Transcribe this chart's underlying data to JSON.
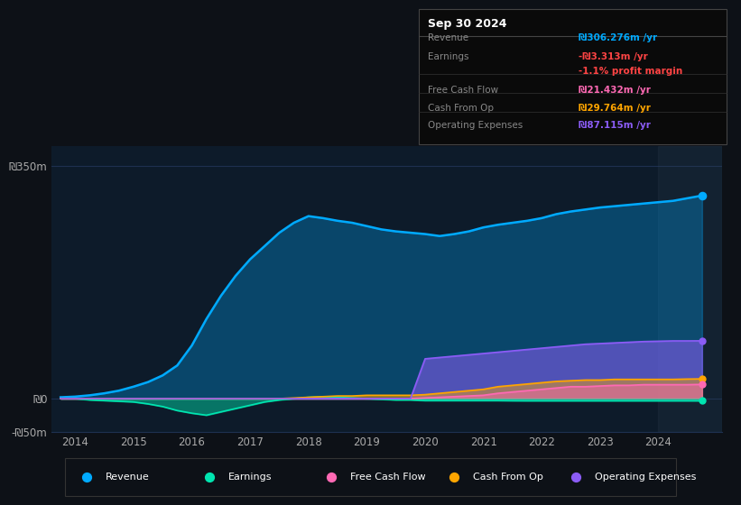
{
  "bg_color": "#0d1117",
  "plot_bg_color": "#0d1b2a",
  "grid_color": "#1e3050",
  "title_box_date": "Sep 30 2024",
  "years": [
    2013.75,
    2014.0,
    2014.25,
    2014.5,
    2014.75,
    2015.0,
    2015.25,
    2015.5,
    2015.75,
    2016.0,
    2016.25,
    2016.5,
    2016.75,
    2017.0,
    2017.25,
    2017.5,
    2017.75,
    2018.0,
    2018.25,
    2018.5,
    2018.75,
    2019.0,
    2019.25,
    2019.5,
    2019.75,
    2020.0,
    2020.25,
    2020.5,
    2020.75,
    2021.0,
    2021.25,
    2021.5,
    2021.75,
    2022.0,
    2022.25,
    2022.5,
    2022.75,
    2023.0,
    2023.25,
    2023.5,
    2023.75,
    2024.0,
    2024.25,
    2024.5,
    2024.75
  ],
  "revenue": [
    2,
    3,
    5,
    8,
    12,
    18,
    25,
    35,
    50,
    80,
    120,
    155,
    185,
    210,
    230,
    250,
    265,
    275,
    272,
    268,
    265,
    260,
    255,
    252,
    250,
    248,
    245,
    248,
    252,
    258,
    262,
    265,
    268,
    272,
    278,
    282,
    285,
    288,
    290,
    292,
    294,
    296,
    298,
    302,
    306
  ],
  "earnings": [
    0,
    0,
    -2,
    -3,
    -4,
    -5,
    -8,
    -12,
    -18,
    -22,
    -25,
    -20,
    -15,
    -10,
    -5,
    -2,
    0,
    2,
    3,
    2,
    1,
    0,
    -1,
    -2,
    -2,
    -3,
    -3,
    -3,
    -3,
    -3,
    -3,
    -3.2,
    -3.3,
    -3.3,
    -3.3,
    -3.3,
    -3.3,
    -3.3,
    -3.3,
    -3.3,
    -3.3,
    -3.3,
    -3.3,
    -3.3,
    -3.313
  ],
  "free_cash_flow": [
    0,
    0,
    0,
    0,
    0,
    0,
    0,
    0,
    0,
    0,
    0,
    0,
    0,
    0,
    0,
    0,
    0,
    0,
    0,
    0,
    0,
    0,
    0,
    0,
    0,
    1,
    2,
    3,
    4,
    5,
    8,
    10,
    12,
    14,
    16,
    18,
    18,
    19,
    20,
    20,
    21,
    21,
    21,
    21,
    21.432
  ],
  "cash_from_op": [
    0,
    0,
    0,
    0,
    0,
    0,
    0,
    0,
    0,
    0,
    0,
    0,
    0,
    0,
    0,
    0,
    1,
    2,
    3,
    4,
    4,
    5,
    5,
    5,
    5,
    6,
    8,
    10,
    12,
    14,
    18,
    20,
    22,
    24,
    26,
    27,
    28,
    28,
    29,
    29,
    29,
    29,
    29,
    29.5,
    29.764
  ],
  "operating_expenses": [
    0,
    0,
    0,
    0,
    0,
    0,
    0,
    0,
    0,
    0,
    0,
    0,
    0,
    0,
    0,
    0,
    0,
    0,
    0,
    0,
    0,
    0,
    0,
    0,
    0,
    60,
    62,
    64,
    66,
    68,
    70,
    72,
    74,
    76,
    78,
    80,
    82,
    83,
    84,
    85,
    86,
    86.5,
    87,
    87,
    87.115
  ],
  "revenue_color": "#00aaff",
  "earnings_color": "#00e5b0",
  "free_cash_flow_color": "#ff69b4",
  "cash_from_op_color": "#ffa500",
  "operating_expenses_color": "#8b5cf6",
  "ylim": [
    -50,
    380
  ],
  "yticks": [
    -50,
    0,
    350
  ],
  "ytick_labels": [
    "-₪50m",
    "₪0",
    "₪350m"
  ],
  "xlim": [
    2013.6,
    2025.1
  ],
  "xticks": [
    2014,
    2015,
    2016,
    2017,
    2018,
    2019,
    2020,
    2021,
    2022,
    2023,
    2024
  ],
  "legend_items": [
    {
      "label": "Revenue",
      "color": "#00aaff"
    },
    {
      "label": "Earnings",
      "color": "#00e5b0"
    },
    {
      "label": "Free Cash Flow",
      "color": "#ff69b4"
    },
    {
      "label": "Cash From Op",
      "color": "#ffa500"
    },
    {
      "label": "Operating Expenses",
      "color": "#8b5cf6"
    }
  ],
  "info_rows": [
    {
      "label": "Revenue",
      "value": "₪306.276m /yr",
      "value_color": "#00aaff",
      "label_color": "#888888"
    },
    {
      "label": "Earnings",
      "value": "-₪3.313m /yr",
      "value_color": "#ff4444",
      "label_color": "#888888"
    },
    {
      "label": "",
      "value": "-1.1% profit margin",
      "value_color": "#ff4444",
      "label_color": "#888888"
    },
    {
      "label": "Free Cash Flow",
      "value": "₪21.432m /yr",
      "value_color": "#ff69b4",
      "label_color": "#888888"
    },
    {
      "label": "Cash From Op",
      "value": "₪29.764m /yr",
      "value_color": "#ffa500",
      "label_color": "#888888"
    },
    {
      "label": "Operating Expenses",
      "value": "₪87.115m /yr",
      "value_color": "#8b5cf6",
      "label_color": "#888888"
    }
  ]
}
